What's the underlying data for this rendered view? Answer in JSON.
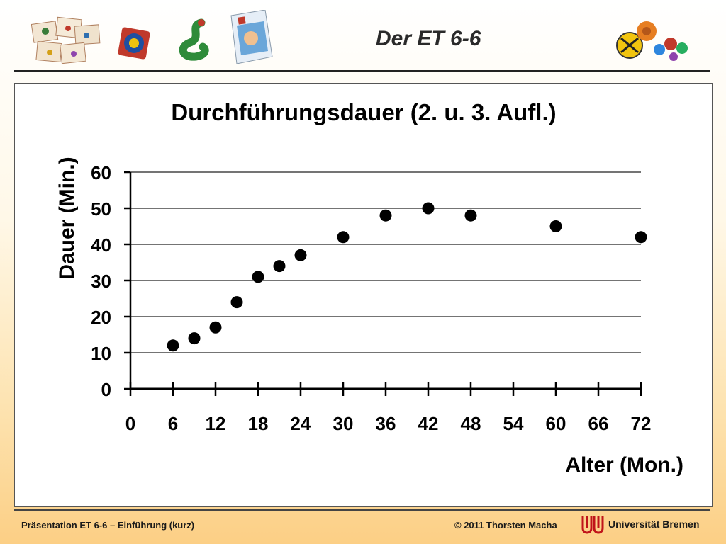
{
  "header": {
    "title": "Der ET 6-6"
  },
  "chart_data": {
    "type": "scatter",
    "title": "Durchführungsdauer (2. u. 3. Aufl.)",
    "xlabel": "Alter (Mon.)",
    "ylabel": "Dauer (Min.)",
    "xlim": [
      0,
      72
    ],
    "ylim": [
      0,
      60
    ],
    "xticks": [
      "0",
      "6",
      "12",
      "18",
      "24",
      "30",
      "36",
      "42",
      "48",
      "54",
      "60",
      "66",
      "72"
    ],
    "yticks": [
      "0",
      "10",
      "20",
      "30",
      "40",
      "50",
      "60"
    ],
    "grid": "horizontal",
    "x": [
      6,
      9,
      12,
      15,
      18,
      21,
      24,
      30,
      36,
      42,
      48,
      60,
      72
    ],
    "y": [
      12,
      14,
      17,
      24,
      31,
      34,
      37,
      42,
      48,
      50,
      48,
      45,
      42
    ],
    "marker_color": "#000000"
  },
  "footer": {
    "left": "Präsentation ET 6-6 – Einführung (kurz)",
    "right": "© 2011 Thorsten Macha",
    "university": "Universität Bremen"
  }
}
